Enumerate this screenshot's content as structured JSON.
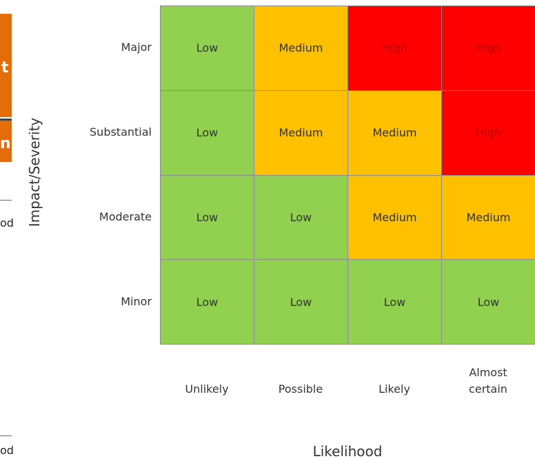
{
  "y_axis_label": "Impact/Severity",
  "x_axis_label": "Likelihood",
  "columns": [
    "Unlikely",
    "Possible",
    "Likely",
    "Almost certain"
  ],
  "rows": [
    {
      "label": "Major",
      "cells": [
        {
          "text": "Low",
          "color": "#92d050"
        },
        {
          "text": "Medium",
          "color": "#ffc000"
        },
        {
          "text": "High",
          "color": "#ff0000",
          "text_color": "#c00000"
        },
        {
          "text": "High",
          "color": "#ff0000",
          "text_color": "#c00000"
        }
      ]
    },
    {
      "label": "Substantial",
      "cells": [
        {
          "text": "Low",
          "color": "#92d050"
        },
        {
          "text": "Medium",
          "color": "#ffc000"
        },
        {
          "text": "Medium",
          "color": "#ffc000"
        },
        {
          "text": "High",
          "color": "#ff0000",
          "text_color": "#c00000"
        }
      ]
    },
    {
      "label": "Moderate",
      "cells": [
        {
          "text": "Low",
          "color": "#92d050"
        },
        {
          "text": "Low",
          "color": "#92d050"
        },
        {
          "text": "Medium",
          "color": "#ffc000"
        },
        {
          "text": "Medium",
          "color": "#ffc000"
        }
      ]
    },
    {
      "label": "Minor",
      "cells": [
        {
          "text": "Low",
          "color": "#92d050"
        },
        {
          "text": "Low",
          "color": "#92d050"
        },
        {
          "text": "Low",
          "color": "#92d050"
        },
        {
          "text": "Low",
          "color": "#92d050"
        }
      ]
    }
  ],
  "fragments": [
    "t",
    "n",
    "od",
    "od"
  ]
}
